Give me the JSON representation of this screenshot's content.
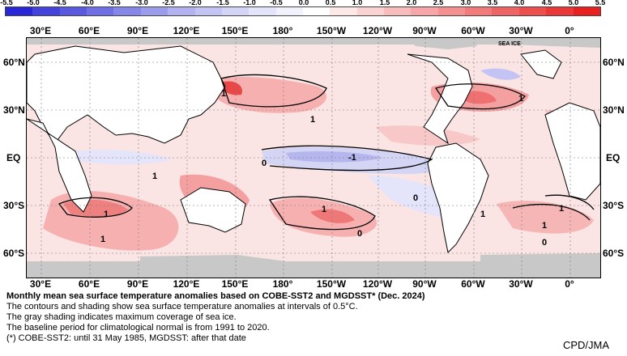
{
  "colorbar": {
    "labels": [
      "-5.5",
      "-5.0",
      "-4.5",
      "-4.0",
      "-3.5",
      "-3.0",
      "-2.5",
      "-2.0",
      "-1.5",
      "-1.0",
      "-0.5",
      "0.0",
      "0.5",
      "1.0",
      "1.5",
      "2.0",
      "2.5",
      "3.0",
      "3.5",
      "4.0",
      "4.5",
      "5.0",
      "5.5"
    ],
    "colors": [
      "#2828d8",
      "#4444dc",
      "#5a5ae0",
      "#7070e4",
      "#8686e8",
      "#9c9cec",
      "#b2b2f0",
      "#c4c4f4",
      "#d4d4f7",
      "#e4e4fa",
      "#f2f2fd",
      "#ffffff",
      "#fde8e8",
      "#fbd2d2",
      "#f9bcbc",
      "#f6a6a6",
      "#f49090",
      "#f27a7a",
      "#ef6464",
      "#ed4e4e",
      "#ea3838",
      "#e82020"
    ]
  },
  "lon_labels_top": [
    "30°E",
    "60°E",
    "90°E",
    "120°E",
    "150°E",
    "180°",
    "150°W",
    "120°W",
    "90°W",
    "60°W",
    "30°W",
    "0°"
  ],
  "lon_labels_bottom": [
    "30°E",
    "60°E",
    "90°E",
    "120°E",
    "150°E",
    "180°",
    "150°W",
    "120°W",
    "90°W",
    "60°W",
    "30°W",
    "0°"
  ],
  "lat_labels_left": [
    "60°N",
    "30°N",
    "EQ",
    "30°S",
    "60°S"
  ],
  "lat_labels_right": [
    "60°N",
    "30°N",
    "EQ",
    "30°S",
    "60°S"
  ],
  "map_annotations": {
    "sea_ice_tag": "SEA ICE",
    "contour_labels": [
      "1",
      "1",
      "1",
      "1",
      "0",
      "-1",
      "1",
      "1",
      "1",
      "1",
      "1",
      "1",
      "0",
      "0",
      "0"
    ]
  },
  "caption": {
    "title": "Monthly mean sea surface temperature anomalies based on COBE-SST2 and MGDSST* (Dec. 2024)",
    "lines": [
      "The contours and shading show sea surface temperature anomalies at intervals of 0.5°C.",
      "The gray shading indicates maximum coverage of sea ice.",
      "The baseline period for climatological normal is from 1991 to 2020.",
      "(*) COBE-SST2: until 31 May 1985, MGDSST: after that date"
    ]
  },
  "credit": "CPD/JMA",
  "colors": {
    "land": "#ffffff",
    "sea_ice": "#c8c8c8",
    "contour": "#000000",
    "grid": "#555555"
  }
}
